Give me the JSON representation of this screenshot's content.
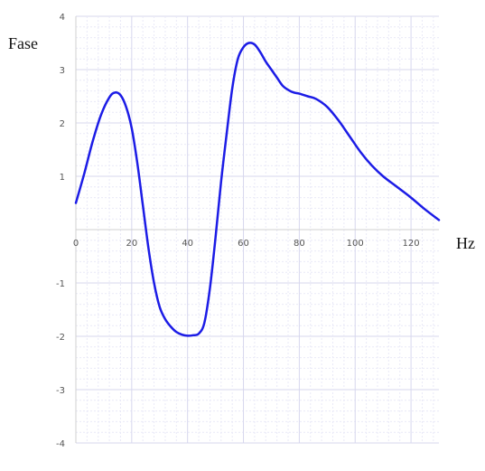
{
  "colors": {
    "background": "#ffffff",
    "grid_minor": "#e9e9f7",
    "grid_major": "#d7d7ee",
    "axis": "#d0d0d0",
    "series": "#1c1ce6",
    "tick_text": "#555555",
    "title_text": "#111111"
  },
  "chart_data": {
    "type": "line",
    "title": "",
    "xlabel": "Hz",
    "ylabel": "Fase",
    "xlim": [
      0,
      130
    ],
    "ylim": [
      -4,
      4
    ],
    "x_ticks": [
      "0",
      "20",
      "40",
      "60",
      "80",
      "100",
      "120"
    ],
    "y_ticks": [
      "4",
      "3",
      "2",
      "1",
      "-1",
      "-2",
      "-3",
      "-4"
    ],
    "grid": true,
    "legend": false,
    "series": [
      {
        "x": [
          0,
          3,
          6,
          9,
          12,
          14,
          16,
          18,
          20,
          22,
          24,
          26,
          28,
          30,
          32,
          34,
          36,
          38,
          40,
          42,
          44,
          46,
          48,
          50,
          52,
          54,
          56,
          58,
          60,
          62,
          64,
          66,
          68,
          70,
          72,
          74,
          76,
          78,
          80,
          83,
          86,
          90,
          94,
          98,
          102,
          106,
          110,
          115,
          120,
          125,
          130
        ],
        "y": [
          0.5,
          1.05,
          1.65,
          2.15,
          2.48,
          2.57,
          2.52,
          2.3,
          1.9,
          1.25,
          0.45,
          -0.35,
          -1.0,
          -1.45,
          -1.68,
          -1.82,
          -1.92,
          -1.97,
          -1.99,
          -1.98,
          -1.95,
          -1.75,
          -1.1,
          -0.15,
          0.9,
          1.8,
          2.65,
          3.2,
          3.42,
          3.5,
          3.47,
          3.33,
          3.15,
          3.0,
          2.85,
          2.7,
          2.62,
          2.57,
          2.55,
          2.5,
          2.45,
          2.3,
          2.05,
          1.75,
          1.45,
          1.2,
          1.0,
          0.8,
          0.6,
          0.38,
          0.18
        ]
      }
    ]
  }
}
